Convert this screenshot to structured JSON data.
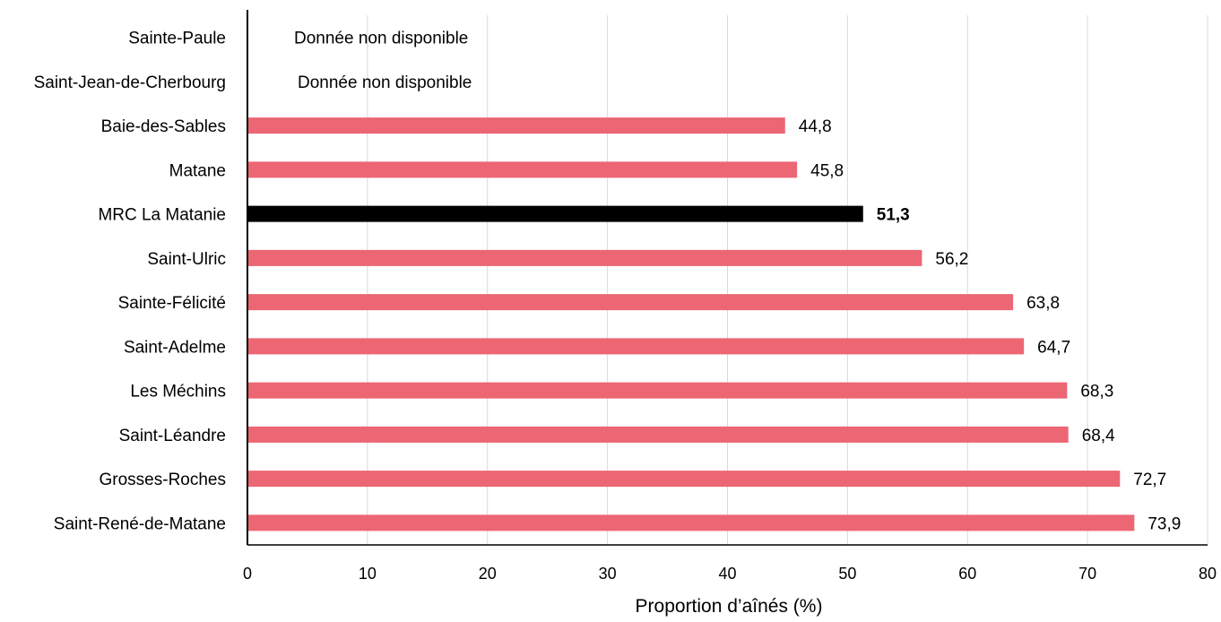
{
  "chart_data": {
    "type": "bar",
    "orientation": "horizontal",
    "categories": [
      "Sainte-Paule",
      "Saint-Jean-de-Cherbourg",
      "Baie-des-Sables",
      "Matane",
      "MRC La Matanie",
      "Saint-Ulric",
      "Sainte-Félicité",
      "Saint-Adelme",
      "Les Méchins",
      "Saint-Léandre",
      "Grosses-Roches",
      "Saint-René-de-Matane"
    ],
    "values": [
      null,
      null,
      44.8,
      45.8,
      51.3,
      56.2,
      63.8,
      64.7,
      68.3,
      68.4,
      72.7,
      73.9
    ],
    "value_labels": [
      "Donnée non disponible",
      "Donnée non disponible",
      "44,8",
      "45,8",
      "51,3",
      "56,2",
      "63,8",
      "64,7",
      "68,3",
      "68,4",
      "72,7",
      "73,9"
    ],
    "highlight": "MRC La Matanie",
    "xlabel": "Proportion d’aînés (%)",
    "ylabel": "",
    "title": "",
    "xlim": [
      0,
      80
    ],
    "xticks": [
      0,
      10,
      20,
      30,
      40,
      50,
      60,
      70,
      80
    ],
    "grid": "vertical",
    "legend": "none",
    "colors": {
      "bar": "#ec6674",
      "highlight": "#000000",
      "grid": "#d9d9d9",
      "axis": "#000000",
      "text": "#000000"
    }
  }
}
